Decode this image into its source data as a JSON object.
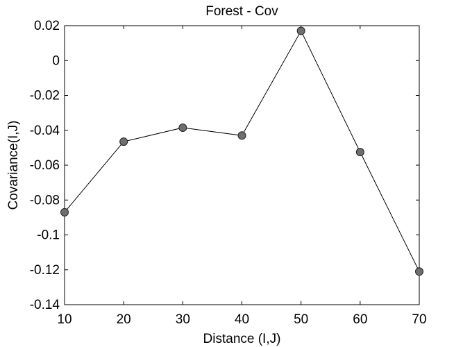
{
  "chart_data": {
    "type": "line",
    "title": "Forest - Cov",
    "xlabel": "Distance (I,J)",
    "ylabel": "Covariance(I,J)",
    "xlim": [
      10,
      70
    ],
    "ylim": [
      -0.14,
      0.02
    ],
    "x_ticks": [
      10,
      20,
      30,
      40,
      50,
      60,
      70
    ],
    "x_tick_labels": [
      "10",
      "20",
      "30",
      "40",
      "50",
      "60",
      "70"
    ],
    "y_ticks": [
      0.02,
      0,
      -0.02,
      -0.04,
      -0.06,
      -0.08,
      -0.1,
      -0.12,
      -0.14
    ],
    "y_tick_labels": [
      "0.02",
      "0",
      "-0.02",
      "-0.04",
      "-0.06",
      "-0.08",
      "-0.1",
      "-0.12",
      "-0.14"
    ],
    "grid": false,
    "series": [
      {
        "x": [
          10,
          20,
          30,
          40,
          50,
          60,
          70
        ],
        "values": [
          -0.087,
          -0.0465,
          -0.0385,
          -0.043,
          0.017,
          -0.0525,
          -0.121
        ],
        "line_color": "#000000",
        "marker_color": "#6e6e6e"
      }
    ]
  }
}
